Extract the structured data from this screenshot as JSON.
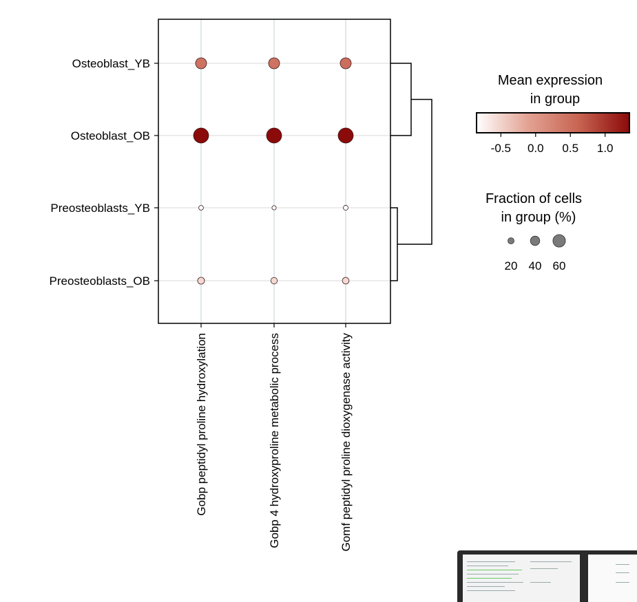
{
  "chart_data": {
    "type": "dotplot",
    "rows": [
      "Osteoblast_YB",
      "Osteoblast_OB",
      "Preosteoblasts_YB",
      "Preosteoblasts_OB"
    ],
    "columns": [
      "Gobp peptidyl proline hydroxylation",
      "Gobp 4 hydroxyproline metabolic process",
      "Gomf peptidyl proline dioxygenase activity"
    ],
    "mean_expression": [
      [
        0.45,
        0.45,
        0.5
      ],
      [
        1.35,
        1.35,
        1.35
      ],
      [
        -0.85,
        -0.85,
        -0.85
      ],
      [
        -0.55,
        -0.55,
        -0.55
      ]
    ],
    "fraction_of_cells": [
      [
        40,
        40,
        40
      ],
      [
        62,
        62,
        62
      ],
      [
        6,
        4,
        7
      ],
      [
        18,
        16,
        17
      ]
    ],
    "color_legend": {
      "title_lines": [
        "Mean expression",
        "in group"
      ],
      "ticks": [
        -0.5,
        0.0,
        0.5,
        1.0
      ],
      "tick_labels": [
        "-0.5",
        "0.0",
        "0.5",
        "1.0"
      ],
      "range": [
        -0.85,
        1.35
      ],
      "colors": [
        "#ffffff",
        "#e3a394",
        "#c86452",
        "#8b0a0a"
      ]
    },
    "size_legend": {
      "title_lines": [
        "Fraction of cells",
        "in group (%)"
      ],
      "values": [
        20,
        40,
        60
      ],
      "labels": [
        "20",
        "40",
        "60"
      ]
    },
    "dendrogram": "rows clustered: (Osteoblast_YB, Osteoblast_OB), (Preosteoblasts_YB, Preosteoblasts_OB)",
    "grid": true
  }
}
